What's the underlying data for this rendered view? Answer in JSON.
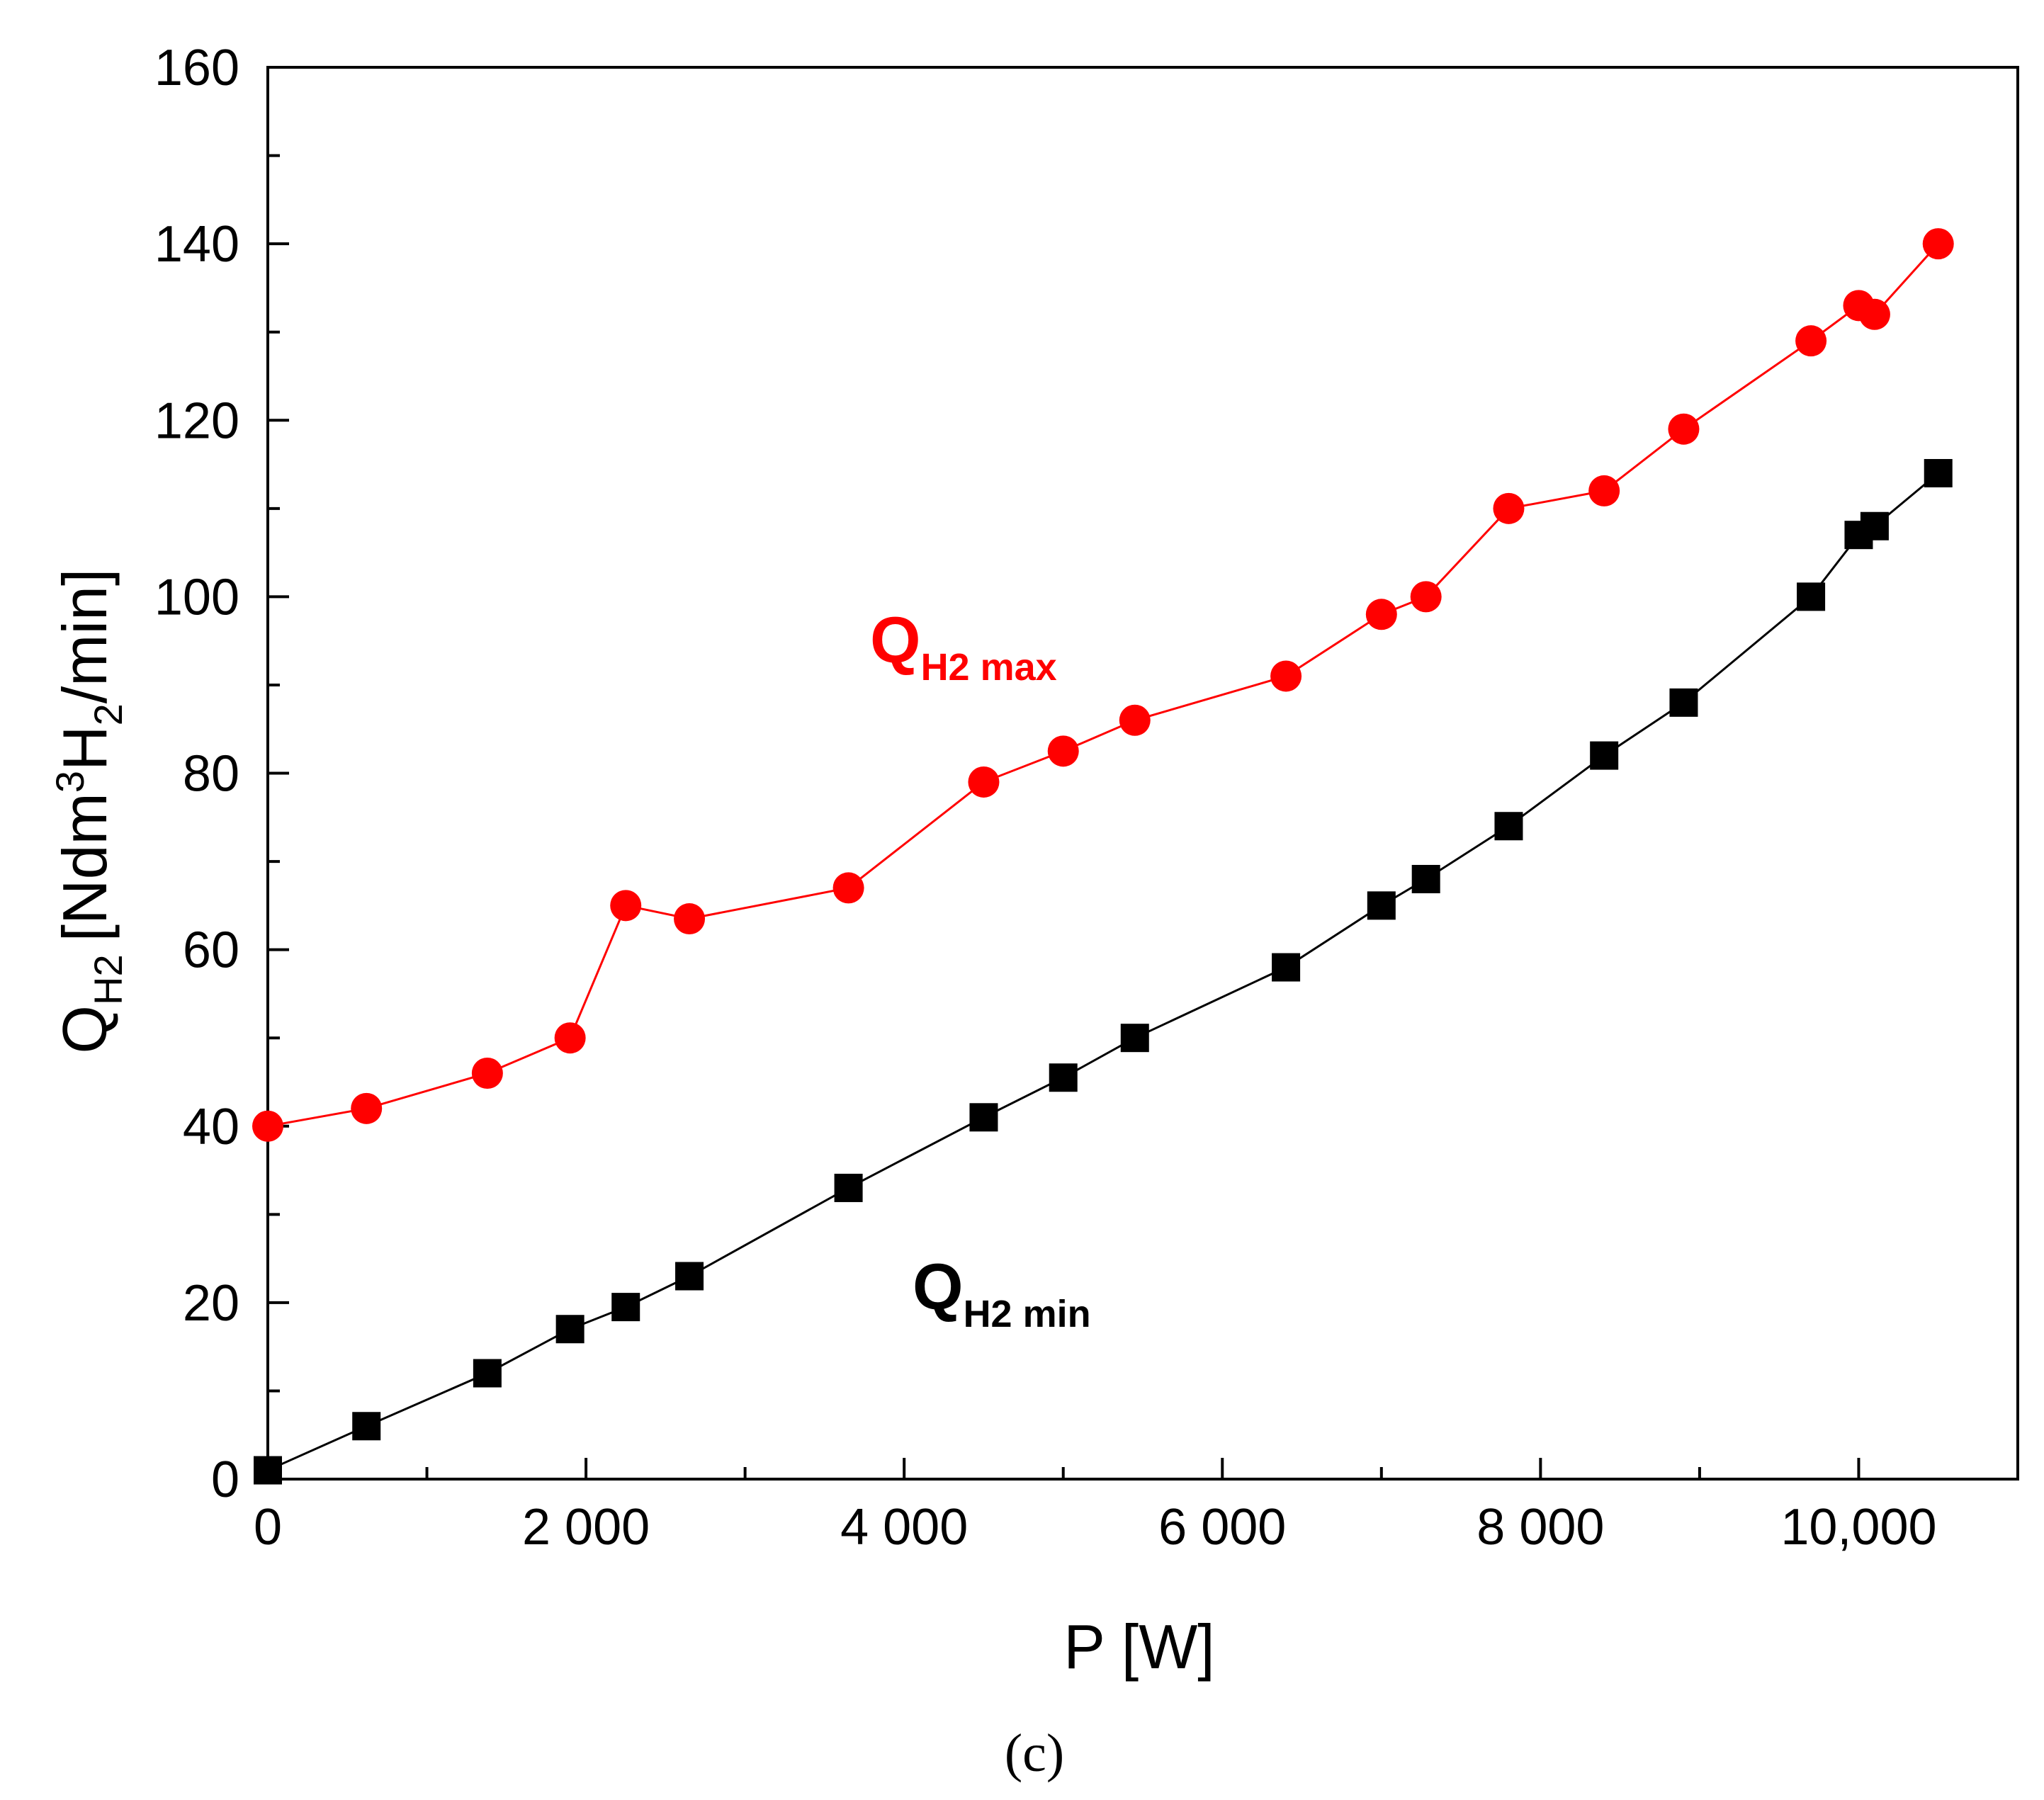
{
  "chart_data": {
    "type": "line",
    "xlabel": "P [W]",
    "ylabel": {
      "main": "Q",
      "sub": "H2",
      "unit_prefix": "[Ndm",
      "unit_sup": "3",
      "unit_mid": "H",
      "unit_sub": "2",
      "unit_suffix": "/min]"
    },
    "xlim": [
      0,
      11000
    ],
    "ylim": [
      0,
      160
    ],
    "x_ticks": [
      0,
      2000,
      4000,
      6000,
      8000,
      10000
    ],
    "x_tick_labels": [
      "0",
      "2 000",
      "4 000",
      "6 000",
      "8 000",
      "10,000"
    ],
    "y_ticks": [
      0,
      20,
      40,
      60,
      80,
      100,
      120,
      140,
      160
    ],
    "y_tick_labels": [
      "0",
      "20",
      "40",
      "60",
      "80",
      "100",
      "120",
      "140",
      "160"
    ],
    "series": [
      {
        "name": "Q_H2 max",
        "label_main": "Q",
        "label_sub": "H2 max",
        "color": "#ff0000",
        "marker": "circle",
        "x": [
          0,
          620,
          1380,
          1900,
          2250,
          2650,
          3650,
          4500,
          5000,
          5450,
          6400,
          7000,
          7280,
          7800,
          8400,
          8900,
          9700,
          10000,
          10100,
          10500
        ],
        "values": [
          40,
          42,
          46,
          50,
          65,
          63.5,
          67,
          79,
          82.5,
          86,
          91,
          98,
          100,
          110,
          112,
          119,
          129,
          133,
          132,
          140
        ]
      },
      {
        "name": "Q_H2 min",
        "label_main": "Q",
        "label_sub": "H2 min",
        "color": "#000000",
        "marker": "square",
        "x": [
          0,
          620,
          1380,
          1900,
          2250,
          2650,
          3650,
          4500,
          5000,
          5450,
          6400,
          7000,
          7280,
          7800,
          8400,
          8900,
          9700,
          10000,
          10100,
          10500
        ],
        "values": [
          1,
          6,
          12,
          17,
          19.5,
          23,
          33,
          41,
          45.5,
          50,
          58,
          65,
          68,
          74,
          82,
          88,
          100,
          107,
          108,
          114
        ]
      }
    ]
  },
  "caption": "(c)"
}
